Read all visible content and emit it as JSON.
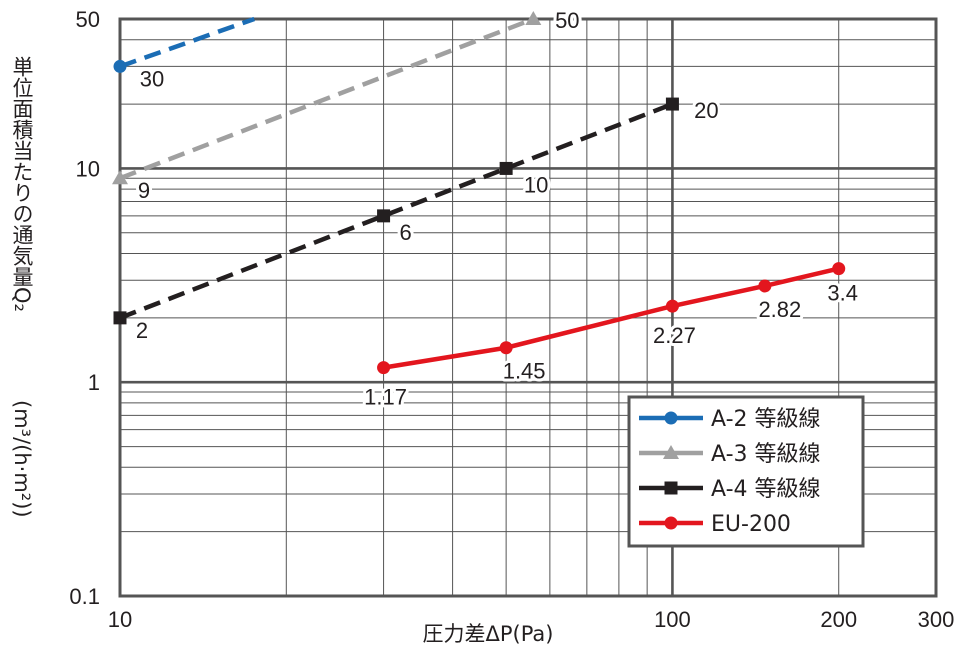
{
  "chart_data": {
    "type": "line",
    "x_scale": "log",
    "y_scale": "log",
    "xlim": [
      10,
      300
    ],
    "ylim": [
      0.1,
      50
    ],
    "xlabel": "圧力差ΔP(Pa)",
    "ylabel_lines": [
      "単位面積当たりの通気量Q₂",
      "(m³/(h·m²))"
    ],
    "x_ticks": [
      {
        "value": 10,
        "label": "10"
      },
      {
        "value": 100,
        "label": "100"
      },
      {
        "value": 200,
        "label": "200"
      },
      {
        "value": 300,
        "label": "300"
      }
    ],
    "y_ticks": [
      {
        "value": 0.1,
        "label": "0.1"
      },
      {
        "value": 1,
        "label": "1"
      },
      {
        "value": 10,
        "label": "10"
      },
      {
        "value": 50,
        "label": "50"
      }
    ],
    "grid": true,
    "legend_position": "bottom-right",
    "series": [
      {
        "name": "A-2 等級線",
        "color": "#1b6db5",
        "marker": "circle",
        "dashed": true,
        "x": [
          10,
          17.5
        ],
        "y": [
          30,
          50
        ],
        "point_markers": [
          0
        ],
        "point_labels": [
          {
            "index": 0,
            "text": "30"
          }
        ]
      },
      {
        "name": "A-3 等級線",
        "color": "#a0a0a0",
        "marker": "triangle",
        "dashed": true,
        "x": [
          10,
          56
        ],
        "y": [
          9,
          50
        ],
        "point_markers": [
          0,
          1
        ],
        "point_labels": [
          {
            "index": 0,
            "text": "9"
          },
          {
            "index": 1,
            "text": "50"
          }
        ]
      },
      {
        "name": "A-4 等級線",
        "color": "#231f20",
        "marker": "square",
        "dashed": true,
        "x": [
          10,
          30,
          50,
          100
        ],
        "y": [
          2,
          6,
          10,
          20
        ],
        "point_markers": [
          0,
          1,
          2,
          3
        ],
        "point_labels": [
          {
            "index": 0,
            "text": "2"
          },
          {
            "index": 1,
            "text": "6"
          },
          {
            "index": 2,
            "text": "10"
          },
          {
            "index": 3,
            "text": "20"
          }
        ]
      },
      {
        "name": "EU-200",
        "color": "#e3161e",
        "marker": "circle",
        "dashed": false,
        "x": [
          30,
          50,
          100,
          147,
          200
        ],
        "y": [
          1.17,
          1.45,
          2.27,
          2.82,
          3.4
        ],
        "point_markers": [
          0,
          1,
          2,
          3,
          4
        ],
        "point_labels": [
          {
            "index": 0,
            "text": "1.17"
          },
          {
            "index": 1,
            "text": "1.45"
          },
          {
            "index": 2,
            "text": "2.27"
          },
          {
            "index": 3,
            "text": "2.82"
          },
          {
            "index": 4,
            "text": "3.4"
          }
        ]
      }
    ]
  }
}
